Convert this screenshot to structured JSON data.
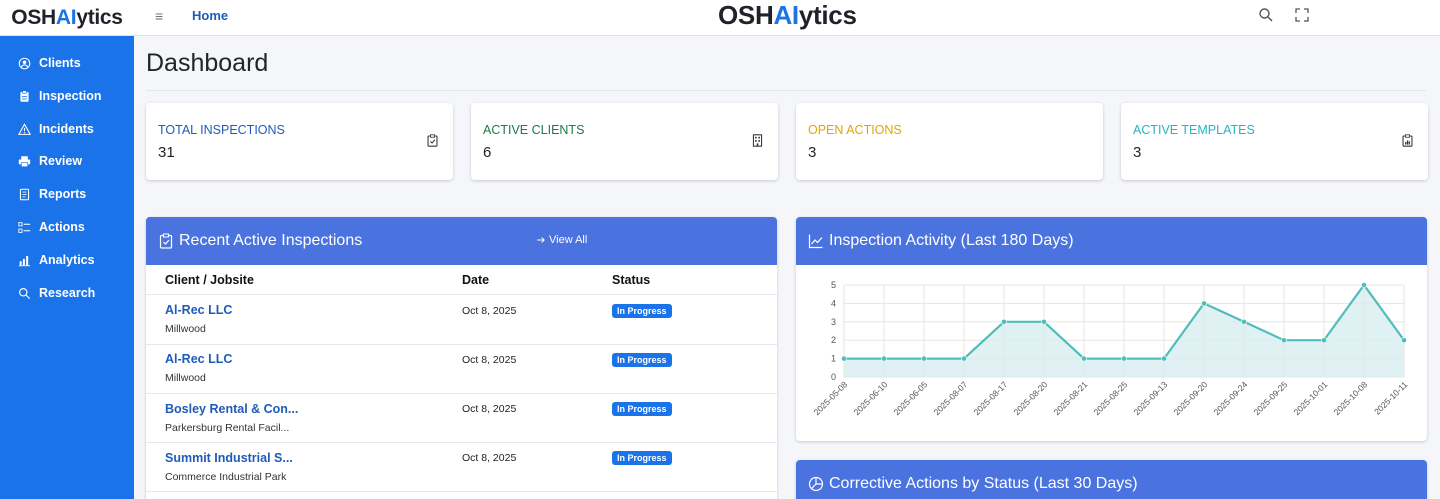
{
  "header": {
    "brand_left": {
      "pre": "OSH",
      "ai": "AI",
      "post": "ytics"
    },
    "brand_center": {
      "pre": "OSH",
      "ai": "AI",
      "post": "ytics"
    },
    "menu_toggle": "≡",
    "home_label": "Home"
  },
  "sidebar": {
    "items": [
      {
        "label": "Clients",
        "icon": "user-circle-icon"
      },
      {
        "label": "Inspection",
        "icon": "clipboard-icon"
      },
      {
        "label": "Incidents",
        "icon": "warning-icon"
      },
      {
        "label": "Review",
        "icon": "printer-icon"
      },
      {
        "label": "Reports",
        "icon": "document-icon"
      },
      {
        "label": "Actions",
        "icon": "list-check-icon"
      },
      {
        "label": "Analytics",
        "icon": "bar-chart-icon"
      },
      {
        "label": "Research",
        "icon": "search-icon"
      }
    ]
  },
  "page": {
    "title": "Dashboard"
  },
  "stats": [
    {
      "label": "TOTAL INSPECTIONS",
      "value": "31",
      "color": "#1f5bb8",
      "icon": "clipboard-check-icon"
    },
    {
      "label": "ACTIVE CLIENTS",
      "value": "6",
      "color": "#1e7a4a",
      "icon": "building-icon"
    },
    {
      "label": "OPEN ACTIONS",
      "value": "3",
      "color": "#e0a800",
      "icon": ""
    },
    {
      "label": "ACTIVE TEMPLATES",
      "value": "3",
      "color": "#27b3c4",
      "icon": "clipboard-data-icon"
    }
  ],
  "recent": {
    "title": "Recent Active Inspections",
    "view_all": "View All",
    "columns": {
      "client": "Client / Jobsite",
      "date": "Date",
      "status": "Status"
    },
    "rows": [
      {
        "client": "Al-Rec LLC",
        "jobsite": "Millwood",
        "date": "Oct 8, 2025",
        "status": "In Progress"
      },
      {
        "client": "Al-Rec LLC",
        "jobsite": "Millwood",
        "date": "Oct 8, 2025",
        "status": "In Progress"
      },
      {
        "client": "Bosley Rental & Con...",
        "jobsite": "Parkersburg Rental Facil...",
        "date": "Oct 8, 2025",
        "status": "In Progress"
      },
      {
        "client": "Summit Industrial S...",
        "jobsite": "Commerce Industrial Park",
        "date": "Oct 8, 2025",
        "status": "In Progress"
      }
    ]
  },
  "activity": {
    "title": "Inspection Activity (Last 180 Days)"
  },
  "corrective": {
    "title": "Corrective Actions by Status (Last 30 Days)"
  },
  "chart_data": {
    "type": "area",
    "title": "Inspection Activity (Last 180 Days)",
    "categories": [
      "2025-05-08",
      "2025-06-10",
      "2025-06-05",
      "2025-08-07",
      "2025-08-17",
      "2025-08-20",
      "2025-08-21",
      "2025-08-25",
      "2025-09-13",
      "2025-09-20",
      "2025-09-24",
      "2025-09-25",
      "2025-10-01",
      "2025-10-08",
      "2025-10-11"
    ],
    "values": [
      1,
      1,
      1,
      1,
      3,
      3,
      1,
      1,
      1,
      4,
      3,
      2,
      2,
      5,
      2
    ],
    "yticks": [
      0,
      1,
      2,
      3,
      4,
      5
    ],
    "ylim": [
      0,
      5
    ],
    "grid": true,
    "legend": "none",
    "line_color": "#4fbdba",
    "fill_color": "#d8eef0"
  }
}
